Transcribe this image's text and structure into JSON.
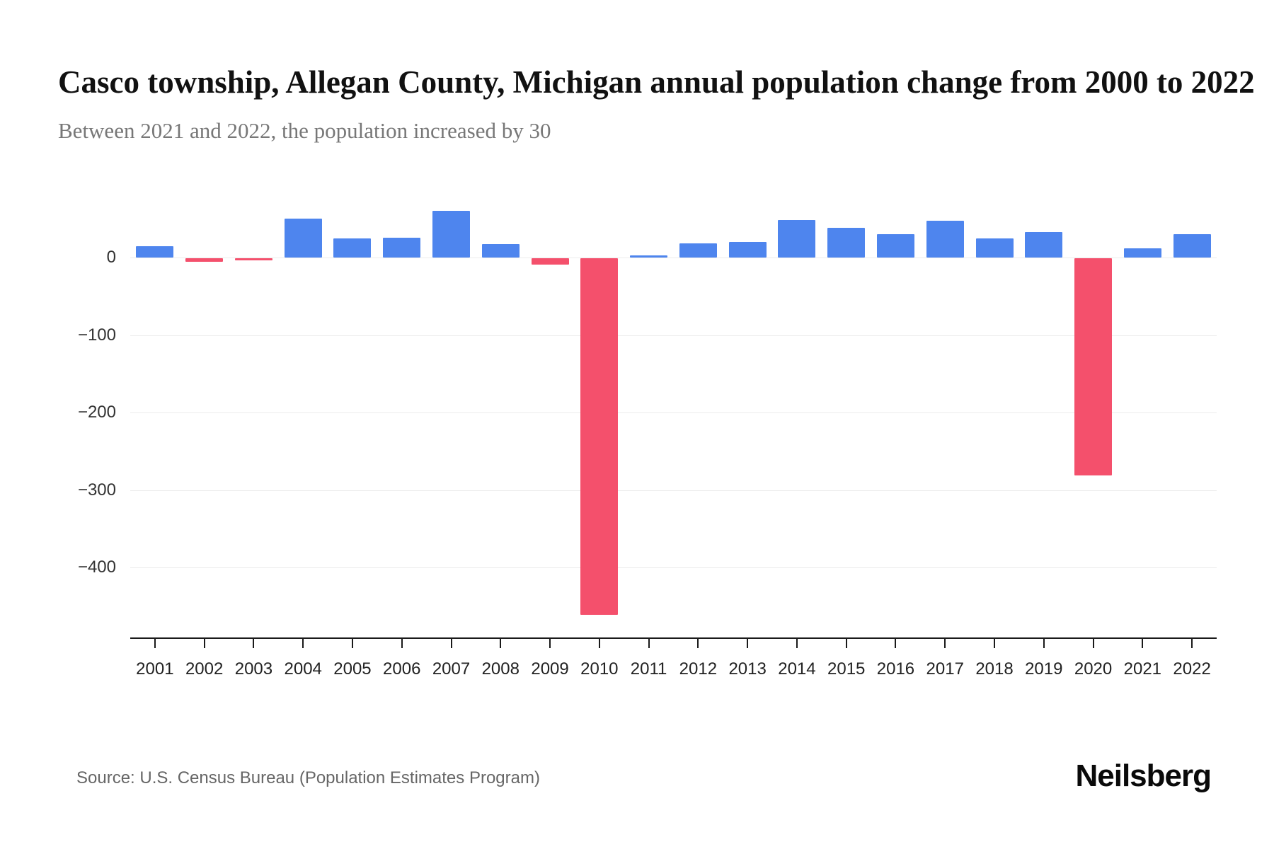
{
  "header": {
    "title": "Casco township, Allegan County, Michigan annual population change from 2000 to 2022",
    "subtitle": "Between 2021 and 2022, the population increased by 30"
  },
  "footer": {
    "source": "Source: U.S. Census Bureau (Population Estimates Program)",
    "brand": "Neilsberg"
  },
  "colors": {
    "positive_bar": "#4e85ee",
    "negative_bar": "#f4506c",
    "gridline": "#ececec",
    "axis": "#1a1a1a"
  },
  "chart_data": {
    "type": "bar",
    "title": "Casco township, Allegan County, Michigan annual population change from 2000 to 2022",
    "subtitle": "Between 2021 and 2022, the population increased by 30",
    "categories": [
      "2001",
      "2002",
      "2003",
      "2004",
      "2005",
      "2006",
      "2007",
      "2008",
      "2009",
      "2010",
      "2011",
      "2012",
      "2013",
      "2014",
      "2015",
      "2016",
      "2017",
      "2018",
      "2019",
      "2020",
      "2021",
      "2022"
    ],
    "values": [
      15,
      -5,
      -2,
      50,
      25,
      26,
      60,
      17,
      -8,
      -460,
      3,
      18,
      20,
      48,
      38,
      30,
      47,
      25,
      33,
      -280,
      12,
      30
    ],
    "xlabel": "",
    "ylabel": "",
    "yticks": [
      0,
      -100,
      -200,
      -300,
      -400
    ],
    "ytick_labels": [
      "0",
      "−100",
      "−200",
      "−300",
      "−400"
    ],
    "ylim": [
      -480,
      80
    ],
    "grid": true,
    "legend_position": "none",
    "bar_colors": {
      "positive": "#4e85ee",
      "negative": "#f4506c"
    }
  }
}
